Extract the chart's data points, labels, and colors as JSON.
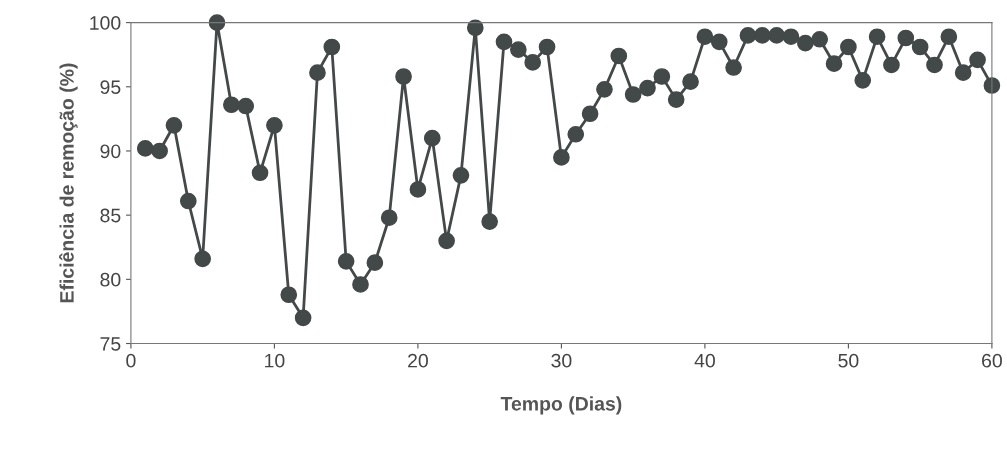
{
  "chart_data": {
    "type": "line",
    "xlabel": "Tempo (Dias)",
    "ylabel": "Eficiência de remoção (%)",
    "x": [
      1,
      2,
      3,
      4,
      5,
      6,
      7,
      8,
      9,
      10,
      11,
      12,
      13,
      14,
      15,
      16,
      17,
      18,
      19,
      20,
      21,
      22,
      23,
      24,
      25,
      26,
      27,
      28,
      29,
      30,
      31,
      32,
      33,
      34,
      35,
      36,
      37,
      38,
      39,
      40,
      41,
      42,
      43,
      44,
      45,
      46,
      47,
      48,
      49,
      50,
      51,
      52,
      53,
      54,
      55,
      56,
      57,
      58,
      59,
      60
    ],
    "series": [
      {
        "color": "#434848",
        "values": [
          90.2,
          90.0,
          92.0,
          86.1,
          81.6,
          100,
          93.6,
          93.5,
          88.3,
          92.0,
          78.8,
          77.0,
          96.1,
          98.1,
          81.4,
          79.6,
          81.3,
          84.8,
          95.8,
          87.0,
          91.0,
          83.0,
          88.1,
          99.6,
          84.5,
          98.5,
          97.9,
          96.9,
          98.1,
          89.5,
          91.3,
          92.9,
          94.8,
          97.4,
          94.4,
          94.9,
          95.8,
          94.0,
          95.4,
          98.9,
          98.5,
          96.5,
          99.0,
          99.0,
          99.0,
          98.9,
          98.4,
          98.7,
          96.8,
          98.1,
          95.5,
          98.9,
          96.7,
          98.8,
          98.1,
          96.7,
          98.9,
          96.1,
          97.1,
          95.1
        ]
      }
    ],
    "xlim": [
      0,
      60
    ],
    "xticks": [
      0,
      10,
      20,
      30,
      40,
      50,
      60
    ],
    "ylim": [
      75,
      100
    ],
    "yticks": [
      75,
      80,
      85,
      90,
      95,
      100
    ],
    "marker": "circle",
    "line_style": "solid",
    "grid": false,
    "legend": false
  }
}
